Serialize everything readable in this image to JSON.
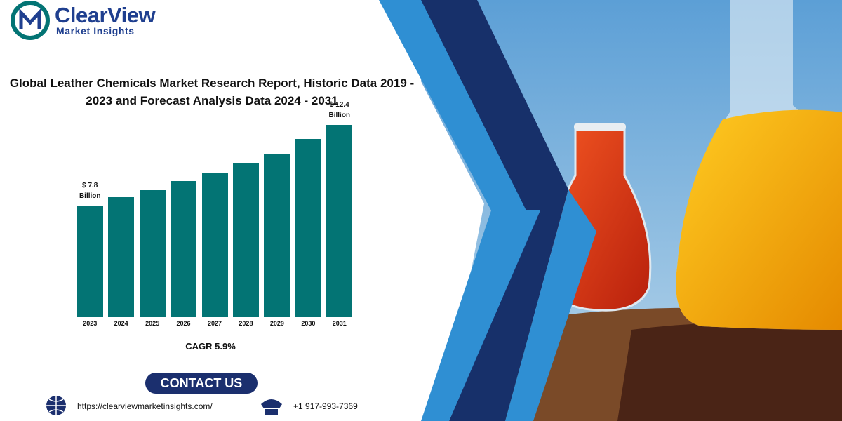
{
  "header": {
    "brand": "ClearView",
    "tagline": "Market Insights"
  },
  "chart_data": {
    "type": "bar",
    "title": "Global Leather Chemicals Market Research Report, Historic Data 2019 - 2023 and Forecast Analysis Data 2024 - 2031",
    "categories": [
      "2023",
      "2024",
      "2025",
      "2026",
      "2027",
      "2028",
      "2029",
      "2030",
      "2031"
    ],
    "values": [
      7.8,
      8.3,
      8.7,
      9.2,
      9.7,
      10.2,
      10.7,
      11.6,
      12.4
    ],
    "value_labels": [
      "$ 7.8 Billion",
      null,
      null,
      null,
      null,
      null,
      null,
      null,
      "$ 12.4 Billion"
    ],
    "color": "#037474",
    "ylim": [
      1.5,
      13.5
    ],
    "annotation": "CAGR 5.9%"
  },
  "contact": {
    "button": "CONTACT US",
    "url": "https://clearviewmarketinsights.com/",
    "phone": "+1 917-993-7369"
  }
}
